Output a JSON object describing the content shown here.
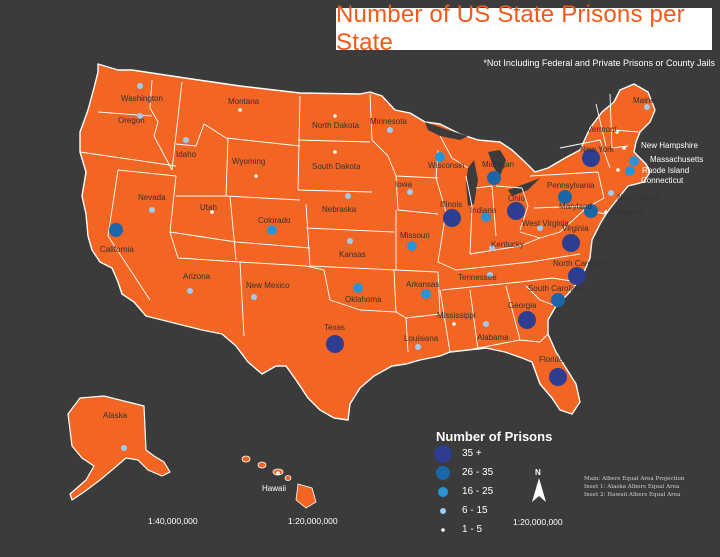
{
  "title": "Number of US State Prisons per State",
  "subtitle": "*Not Including Federal and Private Prisons or County Jails",
  "colors": {
    "background": "#3b3b3b",
    "land": "#f26522",
    "borders": "#ffffff",
    "title_text": "#f05a1a",
    "cat_35_plus": "#2e3d8f",
    "cat_26_35": "#1b66a6",
    "cat_16_25": "#2a93d5",
    "cat_6_15": "#9ecbf0",
    "cat_1_5": "#ffffff"
  },
  "legend": {
    "title": "Number of Prisons",
    "items": [
      {
        "key": "cat_35_plus",
        "label": "35 +"
      },
      {
        "key": "cat_26_35",
        "label": "26 - 35"
      },
      {
        "key": "cat_16_25",
        "label": "16 - 25"
      },
      {
        "key": "cat_6_15",
        "label": "6 - 15"
      },
      {
        "key": "cat_1_5",
        "label": "1 - 5"
      }
    ]
  },
  "states": [
    {
      "name": "Washington",
      "cat": "cat_6_15"
    },
    {
      "name": "Oregon",
      "cat": "cat_6_15"
    },
    {
      "name": "Idaho",
      "cat": "cat_6_15"
    },
    {
      "name": "Montana",
      "cat": "cat_1_5"
    },
    {
      "name": "Wyoming",
      "cat": "cat_1_5"
    },
    {
      "name": "North Dakota",
      "cat": "cat_1_5"
    },
    {
      "name": "South Dakota",
      "cat": "cat_1_5"
    },
    {
      "name": "Minnesota",
      "cat": "cat_6_15"
    },
    {
      "name": "Wisconsin",
      "cat": "cat_16_25"
    },
    {
      "name": "Michigan",
      "cat": "cat_26_35"
    },
    {
      "name": "Iowa",
      "cat": "cat_6_15"
    },
    {
      "name": "Nebraska",
      "cat": "cat_6_15"
    },
    {
      "name": "Nevada",
      "cat": "cat_6_15"
    },
    {
      "name": "Utah",
      "cat": "cat_1_5"
    },
    {
      "name": "Colorado",
      "cat": "cat_16_25"
    },
    {
      "name": "California",
      "cat": "cat_26_35"
    },
    {
      "name": "Kansas",
      "cat": "cat_6_15"
    },
    {
      "name": "Missouri",
      "cat": "cat_16_25"
    },
    {
      "name": "Illinois",
      "cat": "cat_35_plus"
    },
    {
      "name": "Indiana",
      "cat": "cat_16_25"
    },
    {
      "name": "Ohio",
      "cat": "cat_35_plus"
    },
    {
      "name": "Pennsylvania",
      "cat": "cat_26_35"
    },
    {
      "name": "New York",
      "cat": "cat_35_plus"
    },
    {
      "name": "Vermont",
      "cat": "cat_1_5"
    },
    {
      "name": "Maine",
      "cat": "cat_6_15"
    },
    {
      "name": "New Hampshire",
      "cat": "cat_1_5"
    },
    {
      "name": "Massachusetts",
      "cat": "cat_16_25"
    },
    {
      "name": "Rhode Island",
      "cat": "cat_1_5"
    },
    {
      "name": "Connecticut",
      "cat": "cat_16_25"
    },
    {
      "name": "New Jersey",
      "cat": "cat_6_15"
    },
    {
      "name": "Delaware",
      "cat": "cat_1_5"
    },
    {
      "name": "Maryland",
      "cat": "cat_26_35"
    },
    {
      "name": "West Virginia",
      "cat": "cat_6_15"
    },
    {
      "name": "Virginia",
      "cat": "cat_35_plus"
    },
    {
      "name": "Kentucky",
      "cat": "cat_6_15"
    },
    {
      "name": "Tennessee",
      "cat": "cat_6_15"
    },
    {
      "name": "North Carolina",
      "cat": "cat_35_plus"
    },
    {
      "name": "South Carolina",
      "cat": "cat_26_35"
    },
    {
      "name": "Georgia",
      "cat": "cat_35_plus"
    },
    {
      "name": "Florida",
      "cat": "cat_35_plus"
    },
    {
      "name": "Alabama",
      "cat": "cat_6_15"
    },
    {
      "name": "Mississippi",
      "cat": "cat_1_5"
    },
    {
      "name": "Louisiana",
      "cat": "cat_6_15"
    },
    {
      "name": "Arkansas",
      "cat": "cat_16_25"
    },
    {
      "name": "Oklahoma",
      "cat": "cat_16_25"
    },
    {
      "name": "Texas",
      "cat": "cat_35_plus"
    },
    {
      "name": "New Mexico",
      "cat": "cat_6_15"
    },
    {
      "name": "Arizona",
      "cat": "cat_6_15"
    },
    {
      "name": "Alaska",
      "cat": "cat_6_15"
    },
    {
      "name": "Hawaii",
      "cat": "cat_1_5"
    }
  ],
  "scales": {
    "main": "1:20,000,000",
    "alaska": "1:40,000,000",
    "hawaii": "1:20,000,000"
  },
  "north_label": "N",
  "projection_notes": [
    "Main: Albers Equal Area Projection",
    "Inset 1: Alaska Albers Equal Area",
    "Inset 2: Hawaii Albers Equal Area"
  ]
}
